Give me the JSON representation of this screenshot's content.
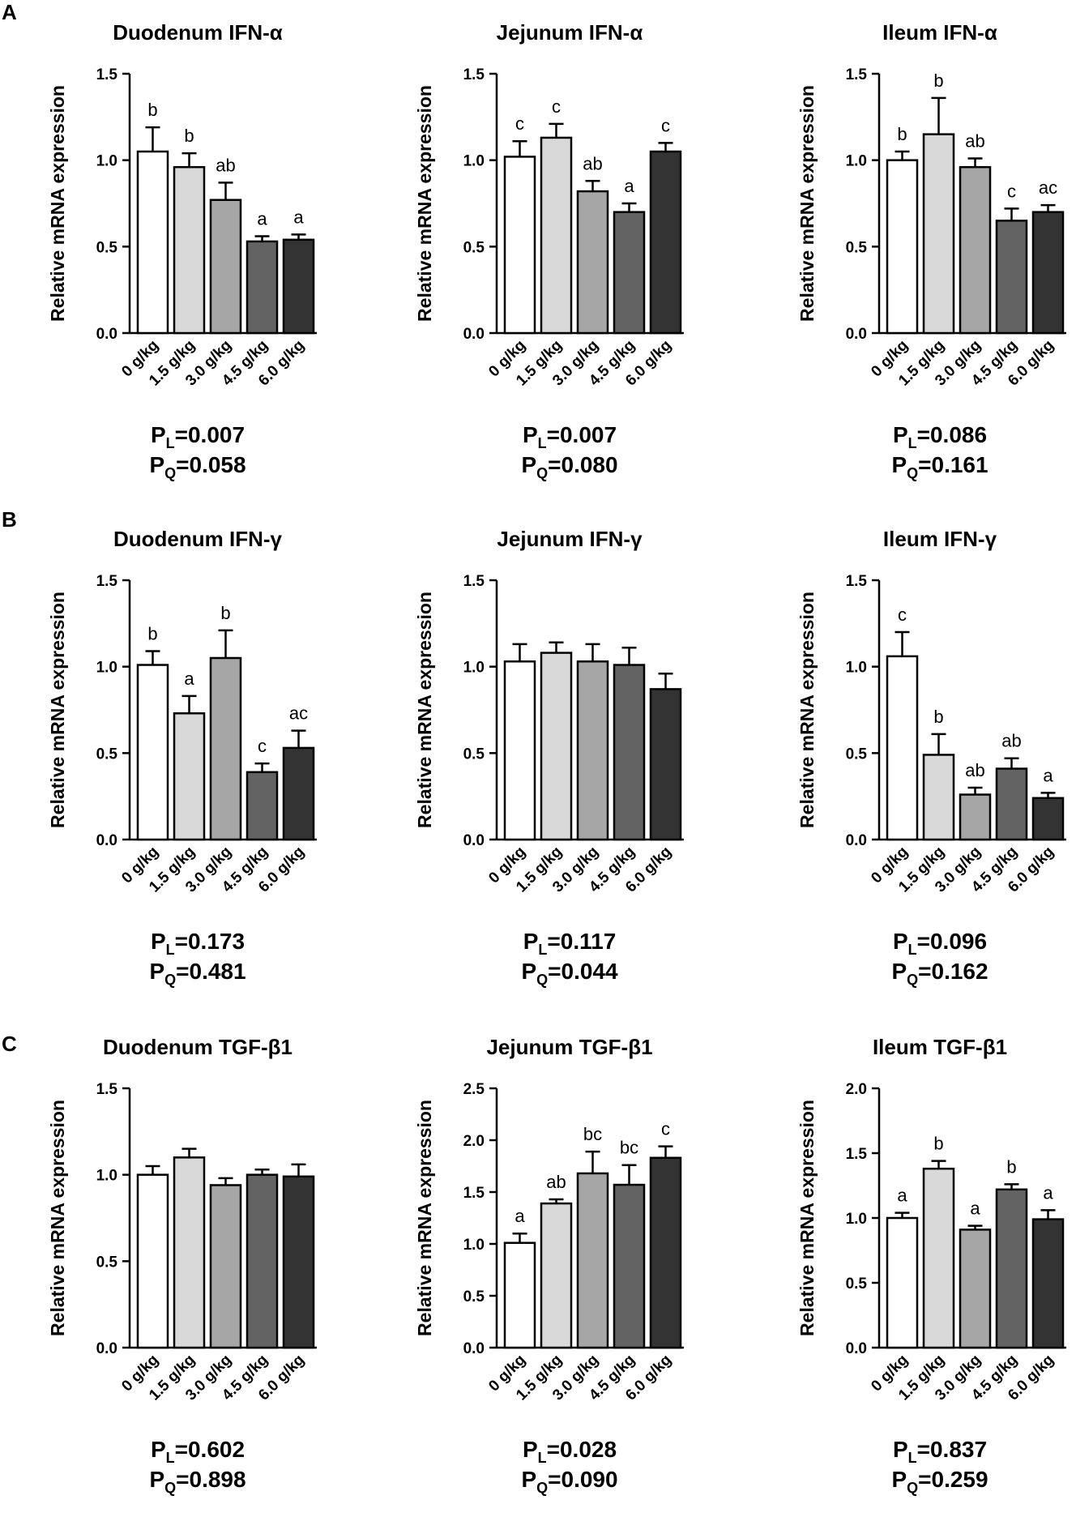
{
  "figure": {
    "panel_letters": [
      "A",
      "B",
      "C"
    ],
    "row_labels": [
      "A",
      "B",
      "C"
    ]
  },
  "chart_data": [
    {
      "type": "bar",
      "panel": "A",
      "title": "Duodenum IFN-α",
      "ylabel": "Relative mRNA expression",
      "ylim": [
        0,
        1.5
      ],
      "yticks": [
        "0.0",
        "0.5",
        "1.0",
        "1.5"
      ],
      "categories": [
        "0 g/kg",
        "1.5 g/kg",
        "3.0 g/kg",
        "4.5 g/kg",
        "6.0 g/kg"
      ],
      "values": [
        1.05,
        0.96,
        0.77,
        0.53,
        0.54
      ],
      "errors": [
        0.14,
        0.08,
        0.1,
        0.03,
        0.03
      ],
      "letters": [
        "b",
        "b",
        "ab",
        "a",
        "a"
      ],
      "colors": [
        "#ffffff",
        "#d9d9d9",
        "#a6a6a6",
        "#636363",
        "#333333"
      ],
      "p_linear": "0.007",
      "p_quadratic": "0.058"
    },
    {
      "type": "bar",
      "panel": "A",
      "title": "Jejunum IFN-α",
      "ylabel": "Relative mRNA expression",
      "ylim": [
        0,
        1.5
      ],
      "yticks": [
        "0.0",
        "0.5",
        "1.0",
        "1.5"
      ],
      "categories": [
        "0 g/kg",
        "1.5 g/kg",
        "3.0 g/kg",
        "4.5 g/kg",
        "6.0 g/kg"
      ],
      "values": [
        1.02,
        1.13,
        0.82,
        0.7,
        1.05
      ],
      "errors": [
        0.09,
        0.08,
        0.06,
        0.05,
        0.05
      ],
      "letters": [
        "c",
        "c",
        "ab",
        "a",
        "c"
      ],
      "colors": [
        "#ffffff",
        "#d9d9d9",
        "#a6a6a6",
        "#636363",
        "#333333"
      ],
      "p_linear": "0.007",
      "p_quadratic": "0.080"
    },
    {
      "type": "bar",
      "panel": "A",
      "title": "Ileum IFN-α",
      "ylabel": "Relative mRNA expression",
      "ylim": [
        0,
        1.5
      ],
      "yticks": [
        "0.0",
        "0.5",
        "1.0",
        "1.5"
      ],
      "categories": [
        "0 g/kg",
        "1.5 g/kg",
        "3.0 g/kg",
        "4.5 g/kg",
        "6.0 g/kg"
      ],
      "values": [
        1.0,
        1.15,
        0.96,
        0.65,
        0.7
      ],
      "errors": [
        0.05,
        0.21,
        0.05,
        0.07,
        0.04
      ],
      "letters": [
        "b",
        "b",
        "ab",
        "c",
        "ac"
      ],
      "colors": [
        "#ffffff",
        "#d9d9d9",
        "#a6a6a6",
        "#636363",
        "#333333"
      ],
      "p_linear": "0.086",
      "p_quadratic": "0.161"
    },
    {
      "type": "bar",
      "panel": "B",
      "title": "Duodenum IFN-γ",
      "ylabel": "Relative mRNA expression",
      "ylim": [
        0,
        1.5
      ],
      "yticks": [
        "0.0",
        "0.5",
        "1.0",
        "1.5"
      ],
      "categories": [
        "0 g/kg",
        "1.5 g/kg",
        "3.0 g/kg",
        "4.5 g/kg",
        "6.0 g/kg"
      ],
      "values": [
        1.01,
        0.73,
        1.05,
        0.39,
        0.53
      ],
      "errors": [
        0.08,
        0.1,
        0.16,
        0.05,
        0.1
      ],
      "letters": [
        "b",
        "a",
        "b",
        "c",
        "ac"
      ],
      "colors": [
        "#ffffff",
        "#d9d9d9",
        "#a6a6a6",
        "#636363",
        "#333333"
      ],
      "p_linear": "0.173",
      "p_quadratic": "0.481"
    },
    {
      "type": "bar",
      "panel": "B",
      "title": "Jejunum IFN-γ",
      "ylabel": "Relative mRNA expression",
      "ylim": [
        0,
        1.5
      ],
      "yticks": [
        "0.0",
        "0.5",
        "1.0",
        "1.5"
      ],
      "categories": [
        "0 g/kg",
        "1.5 g/kg",
        "3.0 g/kg",
        "4.5 g/kg",
        "6.0 g/kg"
      ],
      "values": [
        1.03,
        1.08,
        1.03,
        1.01,
        0.87
      ],
      "errors": [
        0.1,
        0.06,
        0.1,
        0.1,
        0.09
      ],
      "letters": [
        "",
        "",
        "",
        "",
        ""
      ],
      "colors": [
        "#ffffff",
        "#d9d9d9",
        "#a6a6a6",
        "#636363",
        "#333333"
      ],
      "p_linear": "0.117",
      "p_quadratic": "0.044"
    },
    {
      "type": "bar",
      "panel": "B",
      "title": "Ileum IFN-γ",
      "ylabel": "Relative mRNA expression",
      "ylim": [
        0,
        1.5
      ],
      "yticks": [
        "0.0",
        "0.5",
        "1.0",
        "1.5"
      ],
      "categories": [
        "0 g/kg",
        "1.5 g/kg",
        "3.0 g/kg",
        "4.5 g/kg",
        "6.0 g/kg"
      ],
      "values": [
        1.06,
        0.49,
        0.26,
        0.41,
        0.24
      ],
      "errors": [
        0.14,
        0.12,
        0.04,
        0.06,
        0.03
      ],
      "letters": [
        "c",
        "b",
        "ab",
        "ab",
        "a"
      ],
      "colors": [
        "#ffffff",
        "#d9d9d9",
        "#a6a6a6",
        "#636363",
        "#333333"
      ],
      "p_linear": "0.096",
      "p_quadratic": "0.162"
    },
    {
      "type": "bar",
      "panel": "C",
      "title": "Duodenum TGF-β1",
      "ylabel": "Relative mRNA expression",
      "ylim": [
        0,
        1.5
      ],
      "yticks": [
        "0.0",
        "0.5",
        "1.0",
        "1.5"
      ],
      "categories": [
        "0 g/kg",
        "1.5 g/kg",
        "3.0 g/kg",
        "4.5 g/kg",
        "6.0 g/kg"
      ],
      "values": [
        1.0,
        1.1,
        0.94,
        1.0,
        0.99
      ],
      "errors": [
        0.05,
        0.05,
        0.04,
        0.03,
        0.07
      ],
      "letters": [
        "",
        "",
        "",
        "",
        ""
      ],
      "colors": [
        "#ffffff",
        "#d9d9d9",
        "#a6a6a6",
        "#636363",
        "#333333"
      ],
      "p_linear": "0.602",
      "p_quadratic": "0.898"
    },
    {
      "type": "bar",
      "panel": "C",
      "title": "Jejunum TGF-β1",
      "ylabel": "Relative mRNA expression",
      "ylim": [
        0,
        2.5
      ],
      "yticks": [
        "0.0",
        "0.5",
        "1.0",
        "1.5",
        "2.0",
        "2.5"
      ],
      "categories": [
        "0 g/kg",
        "1.5 g/kg",
        "3.0 g/kg",
        "4.5 g/kg",
        "6.0 g/kg"
      ],
      "values": [
        1.01,
        1.39,
        1.68,
        1.57,
        1.83
      ],
      "errors": [
        0.09,
        0.04,
        0.21,
        0.19,
        0.11
      ],
      "letters": [
        "a",
        "ab",
        "bc",
        "bc",
        "c"
      ],
      "colors": [
        "#ffffff",
        "#d9d9d9",
        "#a6a6a6",
        "#636363",
        "#333333"
      ],
      "p_linear": "0.028",
      "p_quadratic": "0.090"
    },
    {
      "type": "bar",
      "panel": "C",
      "title": "Ileum TGF-β1",
      "ylabel": "Relative mRNA expression",
      "ylim": [
        0,
        2.0
      ],
      "yticks": [
        "0.0",
        "0.5",
        "1.0",
        "1.5",
        "2.0"
      ],
      "categories": [
        "0 g/kg",
        "1.5 g/kg",
        "3.0 g/kg",
        "4.5 g/kg",
        "6.0 g/kg"
      ],
      "values": [
        1.0,
        1.38,
        0.91,
        1.22,
        0.99
      ],
      "errors": [
        0.04,
        0.06,
        0.03,
        0.04,
        0.07
      ],
      "letters": [
        "a",
        "b",
        "a",
        "b",
        "a"
      ],
      "colors": [
        "#ffffff",
        "#d9d9d9",
        "#a6a6a6",
        "#636363",
        "#333333"
      ],
      "p_linear": "0.837",
      "p_quadratic": "0.259"
    }
  ]
}
